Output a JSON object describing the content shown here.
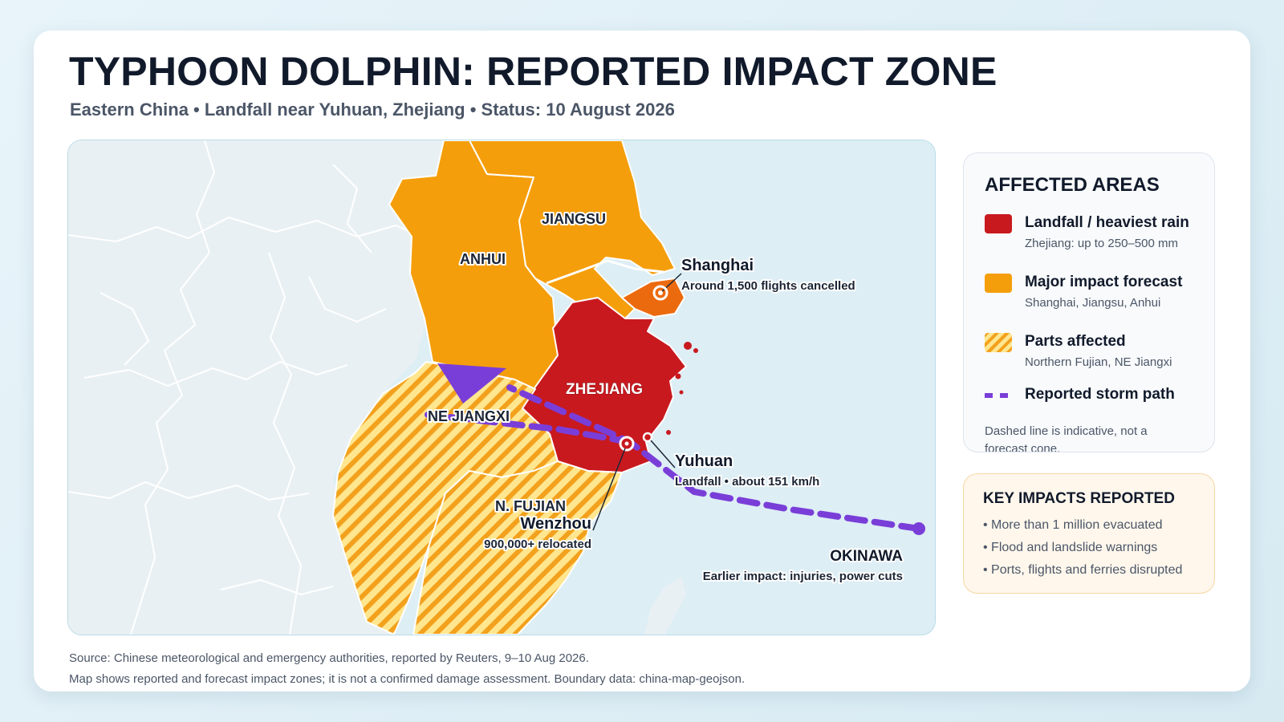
{
  "header": {
    "title": "TYPHOON DOLPHIN: REPORTED IMPACT ZONE",
    "subtitle": "Eastern China • Landfall near Yuhuan, Zhejiang • Status: 10 August 2026"
  },
  "map": {
    "provinces": {
      "jiangsu": "JIANGSU",
      "anhui": "ANHUI",
      "zhejiang": "ZHEJIANG",
      "ne_jiangxi": "NE JIANGXI",
      "n_fujian": "N. FUJIAN"
    },
    "callouts": {
      "shanghai": {
        "name": "Shanghai",
        "note": "Around 1,500 flights cancelled"
      },
      "yuhuan": {
        "name": "Yuhuan",
        "note": "Landfall • about 151 km/h"
      },
      "wenzhou": {
        "name": "Wenzhou",
        "note": "900,000+ relocated"
      },
      "okinawa": {
        "name": "OKINAWA",
        "note": "Earlier impact: injuries, power cuts"
      }
    },
    "colors": {
      "landfall": "#c8191f",
      "major": "#f59e0b",
      "shanghai": "#ec6a0e",
      "storm_path": "#7a3ed8",
      "sea": "#ddeef5",
      "land": "#e9f0f3"
    }
  },
  "legend": {
    "title": "AFFECTED AREAS",
    "items": [
      {
        "key": "landfall",
        "label": "Landfall / heaviest rain",
        "sub": "Zhejiang: up to 250–500 mm"
      },
      {
        "key": "major",
        "label": "Major impact forecast",
        "sub": "Shanghai, Jiangsu, Anhui"
      },
      {
        "key": "parts",
        "label": "Parts affected",
        "sub": "Northern Fujian, NE Jiangxi"
      },
      {
        "key": "path",
        "label": "Reported storm path",
        "sub": ""
      }
    ],
    "note": "Dashed line is indicative, not a forecast cone."
  },
  "impacts": {
    "title": "KEY IMPACTS REPORTED",
    "items": [
      "• More than 1 million evacuated",
      "• Flood and landslide warnings",
      "• Ports, flights and ferries disrupted"
    ]
  },
  "footer": {
    "source": "Source: Chinese meteorological and emergency authorities, reported by Reuters, 9–10 Aug 2026.",
    "disclaimer": "Map shows reported and forecast impact zones; it is not a confirmed damage assessment. Boundary data: china-map-geojson."
  }
}
